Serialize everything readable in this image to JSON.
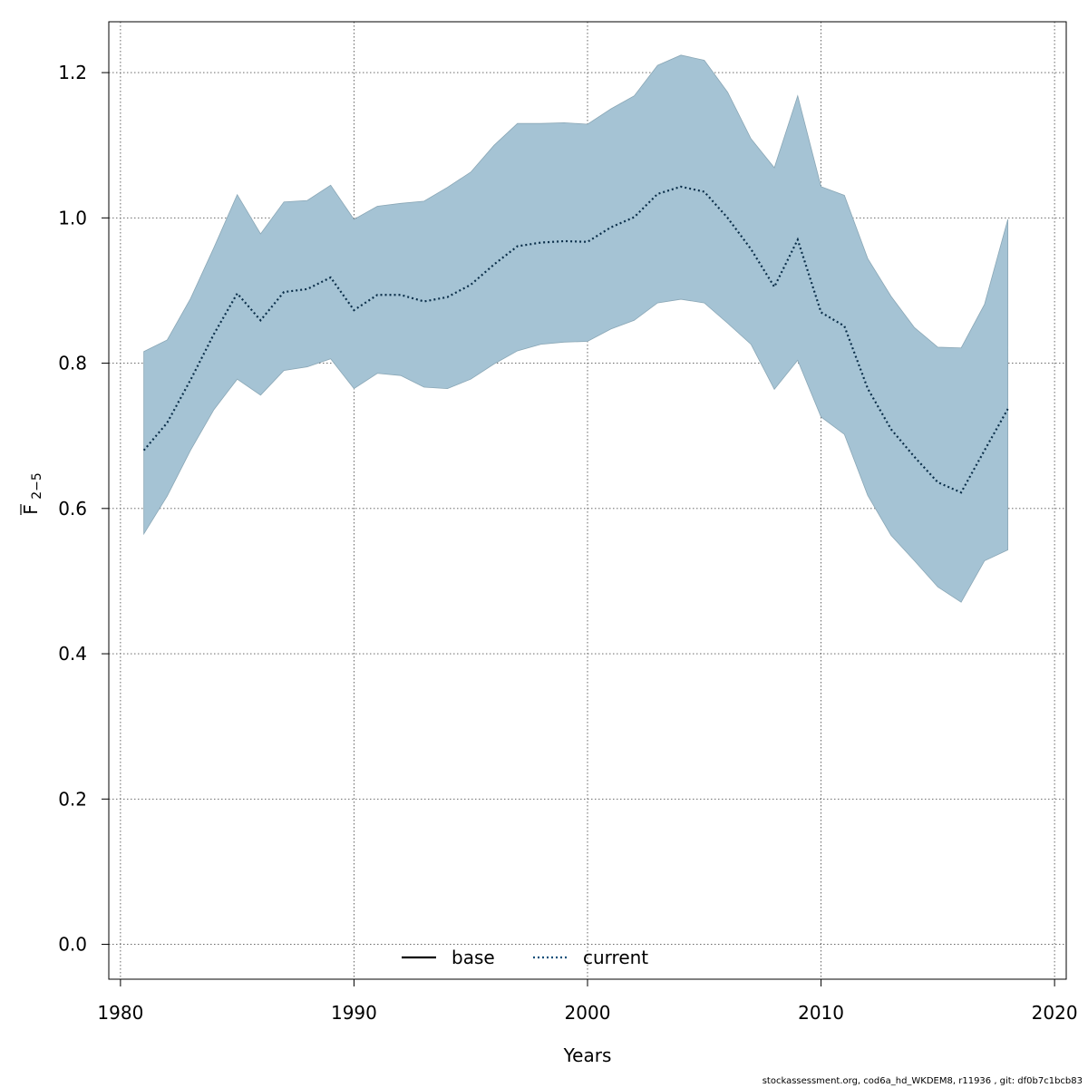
{
  "chart_data": {
    "type": "area",
    "xlabel": "Years",
    "ylabel": {
      "base": "F",
      "subscript": "2−5"
    },
    "xlim": [
      1979.5,
      2020.5
    ],
    "ylim": [
      -0.048,
      1.27
    ],
    "xticks": [
      1980,
      1990,
      2000,
      2010,
      2020
    ],
    "yticks": [
      0.0,
      0.2,
      0.4,
      0.6,
      0.8,
      1.0,
      1.2
    ],
    "xtick_labels": [
      "1980",
      "1990",
      "2000",
      "2010",
      "2020"
    ],
    "ytick_labels": [
      "0.0",
      "0.2",
      "0.4",
      "0.6",
      "0.8",
      "1.0",
      "1.2"
    ],
    "grid": true,
    "legend_position": "bottom-center",
    "legend": [
      {
        "label": "base",
        "style": "solid",
        "color": "#000000"
      },
      {
        "label": "current",
        "style": "dotted",
        "color": "#0b4f7a"
      }
    ],
    "band_color": "#a5c3d4",
    "x": [
      1981,
      1982,
      1983,
      1984,
      1985,
      1986,
      1987,
      1988,
      1989,
      1990,
      1991,
      1992,
      1993,
      1994,
      1995,
      1996,
      1997,
      1998,
      1999,
      2000,
      2001,
      2002,
      2003,
      2004,
      2005,
      2006,
      2007,
      2008,
      2009,
      2010,
      2011,
      2012,
      2013,
      2014,
      2015,
      2016,
      2017,
      2018
    ],
    "series": [
      {
        "name": "current",
        "values": [
          0.68,
          0.718,
          0.777,
          0.84,
          0.896,
          0.859,
          0.898,
          0.902,
          0.918,
          0.873,
          0.894,
          0.894,
          0.885,
          0.891,
          0.908,
          0.936,
          0.961,
          0.966,
          0.968,
          0.967,
          0.987,
          1.001,
          1.033,
          1.043,
          1.036,
          1.0,
          0.957,
          0.905,
          0.97,
          0.87,
          0.851,
          0.765,
          0.709,
          0.671,
          0.636,
          0.622,
          0.68,
          0.737
        ],
        "lower": [
          0.565,
          0.617,
          0.68,
          0.736,
          0.778,
          0.756,
          0.79,
          0.795,
          0.806,
          0.765,
          0.786,
          0.783,
          0.767,
          0.765,
          0.778,
          0.799,
          0.817,
          0.826,
          0.829,
          0.83,
          0.847,
          0.859,
          0.883,
          0.888,
          0.883,
          0.855,
          0.826,
          0.764,
          0.804,
          0.726,
          0.702,
          0.618,
          0.563,
          0.528,
          0.492,
          0.471,
          0.528,
          0.543
        ],
        "upper": [
          0.816,
          0.832,
          0.889,
          0.959,
          1.032,
          0.978,
          1.022,
          1.024,
          1.045,
          0.998,
          1.016,
          1.02,
          1.023,
          1.042,
          1.063,
          1.1,
          1.13,
          1.13,
          1.131,
          1.129,
          1.15,
          1.168,
          1.21,
          1.224,
          1.217,
          1.173,
          1.109,
          1.069,
          1.168,
          1.043,
          1.031,
          0.944,
          0.892,
          0.849,
          0.822,
          0.821,
          0.881,
          0.998
        ]
      }
    ]
  },
  "footer": "stockassessment.org, cod6a_hd_WKDEM8, r11936 , git: df0b7c1bcb83"
}
